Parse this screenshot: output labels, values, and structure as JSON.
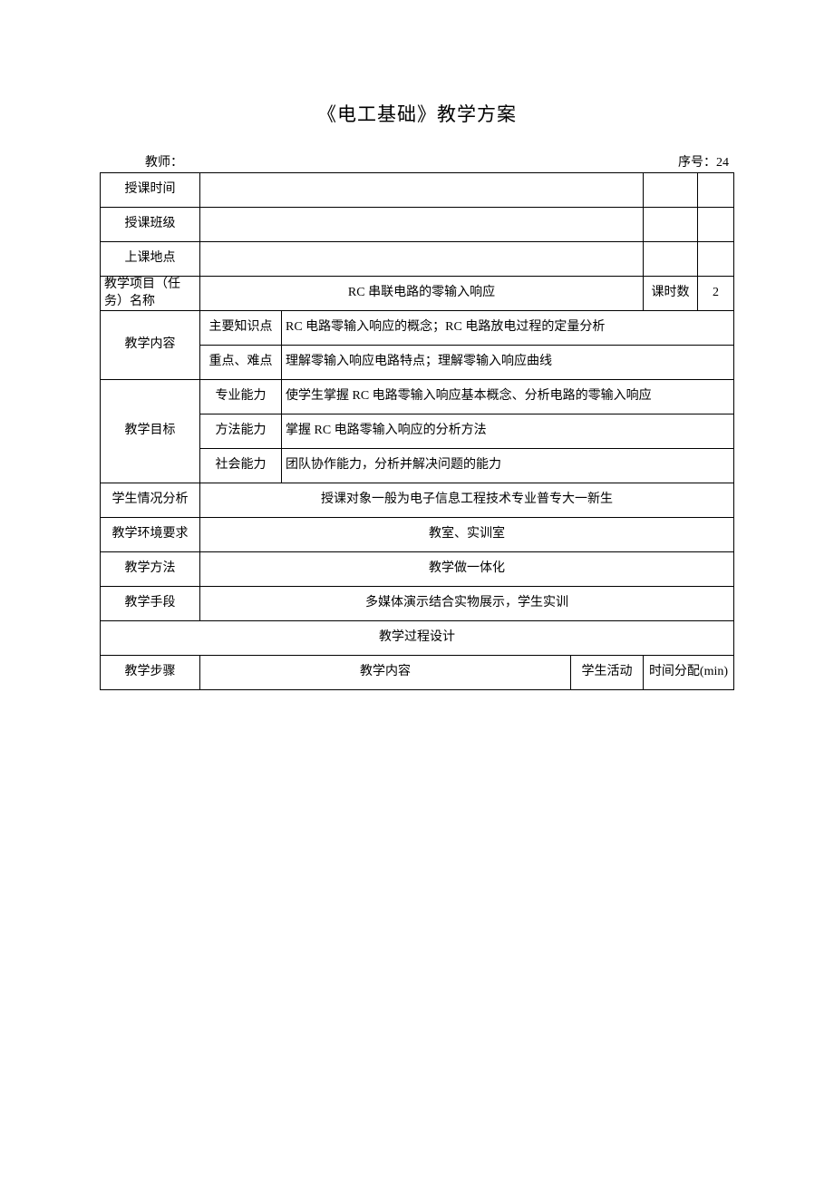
{
  "title": "《电工基础》教学方案",
  "header": {
    "teacher_label": "教师：",
    "seq_label": "序号：24"
  },
  "rows": {
    "time_label": "授课时间",
    "class_label": "授课班级",
    "location_label": "上课地点",
    "project_label": "教学项目（任务）名称",
    "project_value": "RC 串联电路的零输入响应",
    "hours_label": "课时数",
    "hours_value": "2",
    "content_label": "教学内容",
    "content_r1_label": "主要知识点",
    "content_r1_value": "RC 电路零输入响应的概念；RC 电路放电过程的定量分析",
    "content_r2_label": "重点、难点",
    "content_r2_value": "理解零输入响应电路特点；理解零输入响应曲线",
    "goal_label": "教学目标",
    "goal_r1_label": "专业能力",
    "goal_r1_value": "使学生掌握 RC 电路零输入响应基本概念、分析电路的零输入响应",
    "goal_r2_label": "方法能力",
    "goal_r2_value": "掌握 RC 电路零输入响应的分析方法",
    "goal_r3_label": "社会能力",
    "goal_r3_value": "团队协作能力，分析并解决问题的能力",
    "student_label": "学生情况分析",
    "student_value": "授课对象一般为电子信息工程技术专业普专大一新生",
    "env_label": "教学环境要求",
    "env_value": "教室、实训室",
    "method_label": "教学方法",
    "method_value": "教学做一体化",
    "means_label": "教学手段",
    "means_value": "多媒体演示结合实物展示，学生实训",
    "process_label": "教学过程设计",
    "step_label": "教学步骤",
    "step_content_label": "教学内容",
    "step_activity_label": "学生活动",
    "step_time_label": "时间分配(min)"
  }
}
